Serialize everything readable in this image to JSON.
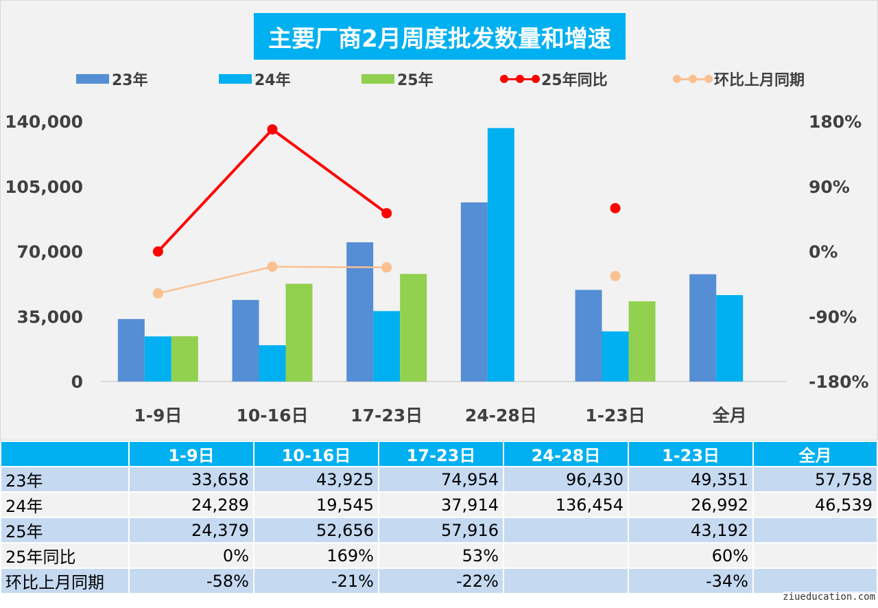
{
  "chart_data": {
    "type": "bar",
    "title": "主要厂商2月周度批发数量和增速",
    "categories": [
      "1-9日",
      "10-16日",
      "17-23日",
      "24-28日",
      "1-23日",
      "全月"
    ],
    "series": [
      {
        "name": "23年",
        "kind": "bar",
        "color": "#558ed5",
        "values": [
          33658,
          43925,
          74954,
          96430,
          49351,
          57758
        ]
      },
      {
        "name": "24年",
        "kind": "bar",
        "color": "#00b0f0",
        "values": [
          24289,
          19545,
          37914,
          136454,
          26992,
          46539
        ]
      },
      {
        "name": "25年",
        "kind": "bar",
        "color": "#92d050",
        "values": [
          24379,
          52656,
          57916,
          null,
          43192,
          null
        ]
      },
      {
        "name": "25年同比",
        "kind": "line",
        "axis": "right",
        "color": "#ff0000",
        "values": [
          0,
          169,
          53,
          null,
          60,
          null
        ]
      },
      {
        "name": "环比上月同期",
        "kind": "line",
        "axis": "right",
        "color": "#fac090",
        "values": [
          -58,
          -21,
          -22,
          null,
          -34,
          null
        ]
      }
    ],
    "y_left": {
      "ticks": [
        "0",
        "35,000",
        "70,000",
        "105,000",
        "140,000"
      ],
      "min": 0,
      "max": 140000
    },
    "y_right": {
      "ticks": [
        "-180%",
        "-90%",
        "0%",
        "90%",
        "180%"
      ],
      "min": -180,
      "max": 180
    },
    "legend_position": "top",
    "grid": false
  },
  "table": {
    "headers": [
      "",
      "1-9日",
      "10-16日",
      "17-23日",
      "24-28日",
      "1-23日",
      "全月"
    ],
    "rows": [
      [
        "23年",
        "33,658",
        "43,925",
        "74,954",
        "96,430",
        "49,351",
        "57,758"
      ],
      [
        "24年",
        "24,289",
        "19,545",
        "37,914",
        "136,454",
        "26,992",
        "46,539"
      ],
      [
        "25年",
        "24,379",
        "52,656",
        "57,916",
        "",
        "43,192",
        ""
      ],
      [
        "25年同比",
        "0%",
        "169%",
        "53%",
        "",
        "60%",
        ""
      ],
      [
        "环比上月同期",
        "-58%",
        "-21%",
        "-22%",
        "",
        "-34%",
        ""
      ]
    ]
  },
  "watermark": "ziueducation.com"
}
